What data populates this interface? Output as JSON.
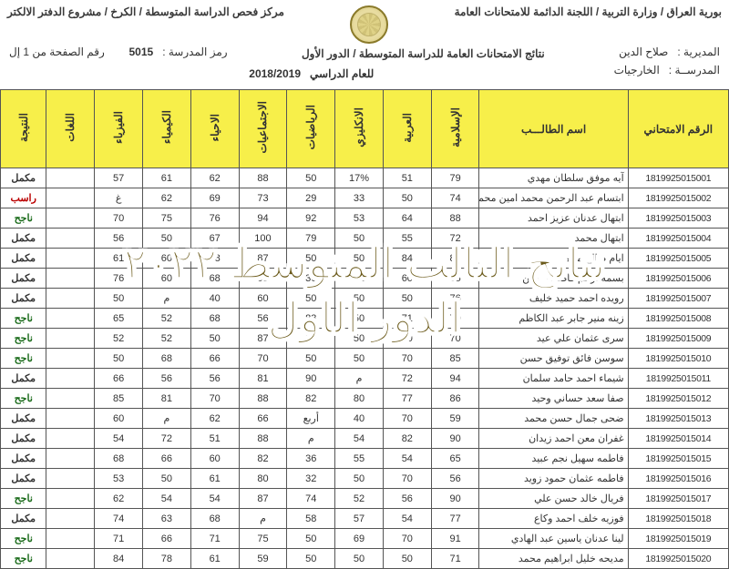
{
  "header": {
    "right": "بورية العراق / وزارة التربية / اللجنة الدائمة للامتحانات العامة",
    "left": "مركز فحص الدراسة المتوسطة / الكرخ / مشروع الدفتر الالكتر",
    "sub": "نتائج الامتحانات العامة للدراسة المتوسطة / الدور الأول",
    "year_label": "للعام الدراسي",
    "year": "2018/2019",
    "school_code_label": "رمز المدرسة :",
    "school_code": "5015",
    "page_label": "رقم الصفحة من 1 إل",
    "directorate_label": "المديرية :",
    "directorate": "صلاح الدين",
    "school_label": "المدرســة :",
    "school": "الخارجيات"
  },
  "columns": [
    "الرقم الامتحاني",
    "اسم الطالـــب",
    "الإسلامية",
    "العربية",
    "الانكليزي",
    "الرياضيات",
    "الاجتماعيات",
    "الاحياء",
    "الكيمياء",
    "الفيزياء",
    "اللغات",
    "النتيجة"
  ],
  "result_labels": {
    "pass": "ناجح",
    "fail": "راسب",
    "mkml": "مكمل"
  },
  "rows": [
    {
      "id": "1819925015001",
      "name": "آيه موفق سلطان مهدي",
      "s": [
        "79",
        "51",
        "17%",
        "50",
        "88",
        "62",
        "61",
        "57",
        ""
      ],
      "res": "mkml"
    },
    {
      "id": "1819925015002",
      "name": "ابتسام عبد الرحمن محمد امين محمود",
      "s": [
        "74",
        "50",
        "33",
        "29",
        "73",
        "69",
        "62",
        "غ",
        ""
      ],
      "res": "fail"
    },
    {
      "id": "1819925015003",
      "name": "ابتهال عدنان عزيز احمد",
      "s": [
        "88",
        "64",
        "53",
        "92",
        "94",
        "76",
        "75",
        "70",
        ""
      ],
      "res": "pass"
    },
    {
      "id": "1819925015004",
      "name": "ابتهال محمد",
      "s": [
        "72",
        "55",
        "50",
        "79",
        "100",
        "67",
        "50",
        "56",
        ""
      ],
      "res": "mkml"
    },
    {
      "id": "1819925015005",
      "name": "ايام صالح محمد",
      "s": [
        "85",
        "84",
        "50",
        "50",
        "87",
        "68",
        "60",
        "61",
        ""
      ],
      "res": "mkml"
    },
    {
      "id": "1819925015006",
      "name": "بسمه أرحم فاضل حسين",
      "s": [
        "85",
        "60",
        "61",
        "36",
        "95",
        "68",
        "60",
        "76",
        ""
      ],
      "res": "mkml"
    },
    {
      "id": "1819925015007",
      "name": "رويده احمد حميد خليف",
      "s": [
        "76",
        "50",
        "50",
        "50",
        "60",
        "40",
        "م",
        "50",
        ""
      ],
      "res": "mkml"
    },
    {
      "id": "1819925015008",
      "name": "زينه منير جابر عبد الكاظم",
      "s": [
        "79",
        "71",
        "50",
        "83",
        "56",
        "68",
        "52",
        "65",
        ""
      ],
      "res": "pass"
    },
    {
      "id": "1819925015009",
      "name": "سرى عثمان علي عيد",
      "s": [
        "70",
        "50",
        "50",
        "50",
        "87",
        "50",
        "52",
        "52",
        ""
      ],
      "res": "pass"
    },
    {
      "id": "1819925015010",
      "name": "سوسن فائق توفيق حسن",
      "s": [
        "85",
        "70",
        "50",
        "50",
        "70",
        "66",
        "68",
        "50",
        ""
      ],
      "res": "pass"
    },
    {
      "id": "1819925015011",
      "name": "شيماء احمد حامد سلمان",
      "s": [
        "94",
        "72",
        "م",
        "90",
        "81",
        "56",
        "56",
        "66",
        ""
      ],
      "res": "mkml"
    },
    {
      "id": "1819925015012",
      "name": "صفا سعد حساني وحيد",
      "s": [
        "86",
        "77",
        "80",
        "82",
        "88",
        "70",
        "81",
        "85",
        ""
      ],
      "res": "pass"
    },
    {
      "id": "1819925015013",
      "name": "ضحى جمال حسن محمد",
      "s": [
        "59",
        "70",
        "40",
        "أربع",
        "66",
        "62",
        "م",
        "60",
        ""
      ],
      "res": "mkml"
    },
    {
      "id": "1819925015014",
      "name": "غفران معن احمد زيدان",
      "s": [
        "90",
        "82",
        "54",
        "م",
        "88",
        "51",
        "72",
        "54",
        ""
      ],
      "res": "mkml"
    },
    {
      "id": "1819925015015",
      "name": "فاطمه سهيل نجم عبيد",
      "s": [
        "65",
        "54",
        "55",
        "36",
        "82",
        "60",
        "66",
        "68",
        ""
      ],
      "res": "mkml"
    },
    {
      "id": "1819925015016",
      "name": "فاطمه عثمان حمود زويد",
      "s": [
        "56",
        "70",
        "50",
        "32",
        "80",
        "61",
        "50",
        "53",
        ""
      ],
      "res": "mkml"
    },
    {
      "id": "1819925015017",
      "name": "فريال خالد حسن علي",
      "s": [
        "90",
        "56",
        "52",
        "74",
        "87",
        "54",
        "54",
        "62",
        ""
      ],
      "res": "pass"
    },
    {
      "id": "1819925015018",
      "name": "فوزيه خلف احمد وكاع",
      "s": [
        "77",
        "54",
        "57",
        "58",
        "م",
        "68",
        "63",
        "74",
        ""
      ],
      "res": "mkml"
    },
    {
      "id": "1819925015019",
      "name": "لينا عدنان ياسين عبد الهادي",
      "s": [
        "91",
        "70",
        "69",
        "50",
        "75",
        "71",
        "66",
        "71",
        ""
      ],
      "res": "pass"
    },
    {
      "id": "1819925015020",
      "name": "مديحه خليل ابراهيم محمد",
      "s": [
        "71",
        "50",
        "50",
        "50",
        "59",
        "61",
        "78",
        "84",
        ""
      ],
      "res": "pass"
    }
  ],
  "overlay": {
    "line1": "نتائج الثالث المتوسط ٢٠٢٢",
    "line2": "الدور الأول"
  },
  "style": {
    "header_bg": "#f7ef4a",
    "border_color": "#555555",
    "overlay_color": "#6b5a1a",
    "overlay_stroke": "#ffffff",
    "overlay_fontsize": 48
  }
}
